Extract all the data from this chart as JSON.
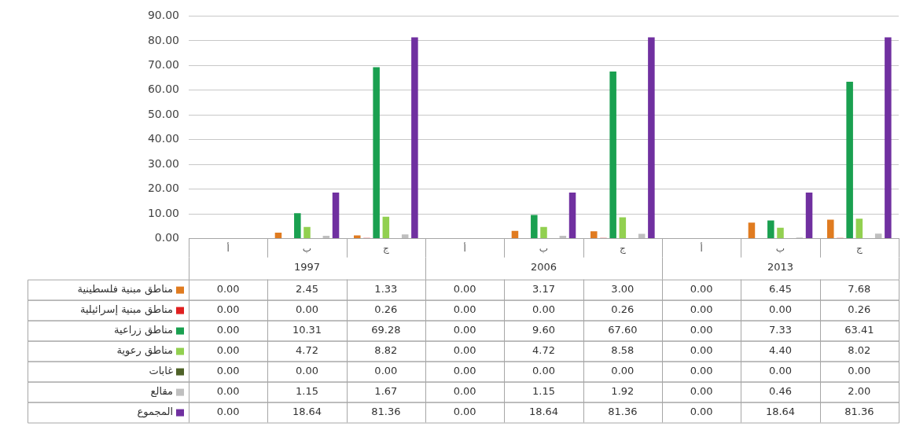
{
  "chart_data": {
    "type": "bar",
    "categories": [
      "أ",
      "ب",
      "ج",
      "أ",
      "ب",
      "ج",
      "أ",
      "ب",
      "ج"
    ],
    "annotations": [
      "1997",
      "2006",
      "2013"
    ],
    "series": [
      {
        "name": "مناطق مبنية فلسطينية",
        "color": "#e07b20",
        "values": [
          0,
          2.45,
          1.33,
          0,
          3.17,
          3.0,
          0,
          6.45,
          7.68
        ],
        "value_labels": [
          "0.00",
          "2.45",
          "1.33",
          "0.00",
          "3.17",
          "3.00",
          "0.00",
          "6.45",
          "7.68"
        ]
      },
      {
        "name": "مناطق مبنية إسرائيلية",
        "color": "#e02020",
        "values": [
          0,
          0,
          0.26,
          0,
          0,
          0.26,
          0,
          0,
          0.26
        ],
        "value_labels": [
          "0.00",
          "0.00",
          "0.26",
          "0.00",
          "0.00",
          "0.26",
          "0.00",
          "0.00",
          "0.26"
        ]
      },
      {
        "name": "مناطق زراعية",
        "color": "#1aa050",
        "values": [
          0,
          10.31,
          69.28,
          0,
          9.6,
          67.6,
          0,
          7.33,
          63.41
        ],
        "value_labels": [
          "0.00",
          "10.31",
          "69.28",
          "0.00",
          "9.60",
          "67.60",
          "0.00",
          "7.33",
          "63.41"
        ]
      },
      {
        "name": "مناطق رعوية",
        "color": "#92d050",
        "values": [
          0,
          4.72,
          8.82,
          0,
          4.72,
          8.58,
          0,
          4.4,
          8.02
        ],
        "value_labels": [
          "0.00",
          "4.72",
          "8.82",
          "0.00",
          "4.72",
          "8.58",
          "0.00",
          "4.40",
          "8.02"
        ]
      },
      {
        "name": "غابات",
        "color": "#4f6228",
        "values": [
          0,
          0,
          0,
          0,
          0,
          0,
          0,
          0,
          0
        ],
        "value_labels": [
          "0.00",
          "0.00",
          "0.00",
          "0.00",
          "0.00",
          "0.00",
          "0.00",
          "0.00",
          "0.00"
        ]
      },
      {
        "name": "مقالع",
        "color": "#bfbfbf",
        "values": [
          0,
          1.15,
          1.67,
          0,
          1.15,
          1.92,
          0,
          0.46,
          2.0
        ],
        "value_labels": [
          "0.00",
          "1.15",
          "1.67",
          "0.00",
          "1.15",
          "1.92",
          "0.00",
          "0.46",
          "2.00"
        ]
      },
      {
        "name": "المجموع",
        "color": "#7030a0",
        "values": [
          0,
          18.64,
          81.36,
          0,
          18.64,
          81.36,
          0,
          18.64,
          81.36
        ],
        "value_labels": [
          "0.00",
          "18.64",
          "81.36",
          "0.00",
          "18.64",
          "81.36",
          "0.00",
          "18.64",
          "81.36"
        ]
      }
    ],
    "ylim": [
      0,
      90
    ],
    "yticks": [
      {
        "value": 0,
        "label": "0.00"
      },
      {
        "value": 10,
        "label": "10.00"
      },
      {
        "value": 20,
        "label": "20.00"
      },
      {
        "value": 30,
        "label": "30.00"
      },
      {
        "value": 40,
        "label": "40.00"
      },
      {
        "value": 50,
        "label": "50.00"
      },
      {
        "value": 60,
        "label": "60.00"
      },
      {
        "value": 70,
        "label": "70.00"
      },
      {
        "value": 80,
        "label": "80.00"
      },
      {
        "value": 90,
        "label": "90.00"
      }
    ],
    "grid": "y",
    "legend": "bottom"
  }
}
